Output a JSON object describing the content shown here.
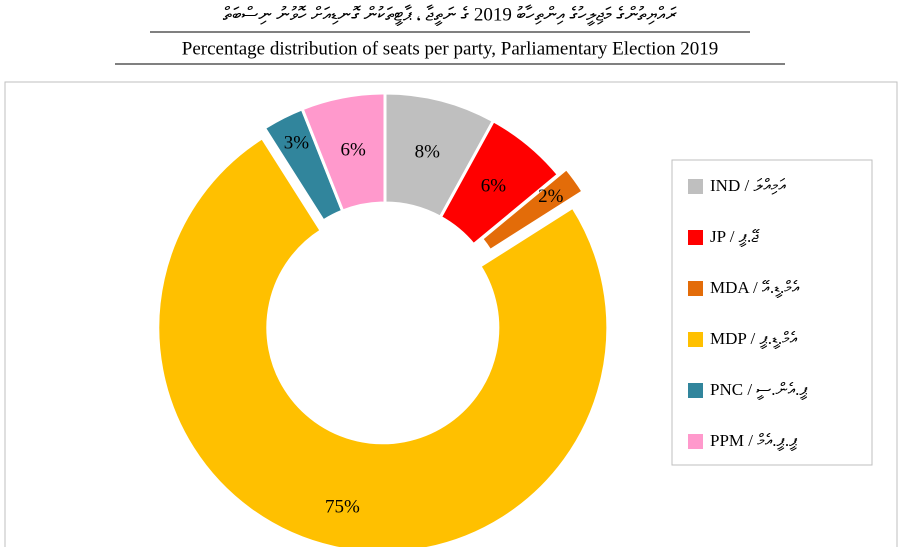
{
  "chart_data": {
    "type": "donut",
    "title": "ރައްޔިތުންގެ މަޖިލީހުގެ އިންތިހާބު 2019 ގެ ނަތީޖާ ، ޕާޓީތަކުން ގޮނޑިއަށް ހޮވުނު ނިސްބަތް",
    "subtitle": "Percentage distribution of seats per party, Parliamentary Election 2019",
    "categories": [
      "IND / އަމިއްލަ",
      "JP / ޖޭ.ޕީ",
      "MDA / އެމް.ޑީ.އޭ",
      "MDP / އެމް.ޑީ.ޕީ",
      "PNC / ޕީ.އެން.ސީ",
      "PPM / ޕީ.ޕީ.އެމް"
    ],
    "values": [
      8,
      6,
      2,
      75,
      3,
      6
    ],
    "value_labels": [
      "8%",
      "6%",
      "2%",
      "75%",
      "3%",
      "6%"
    ],
    "colors": [
      "#bfbfbf",
      "#ff0000",
      "#e36c09",
      "#ffc000",
      "#31859c",
      "#ff99cc"
    ],
    "explode": [
      false,
      false,
      true,
      true,
      false,
      false
    ],
    "legend": "right"
  }
}
